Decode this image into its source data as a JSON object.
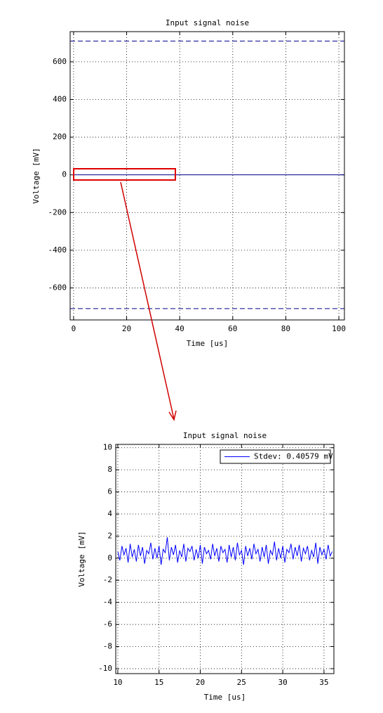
{
  "chart_data": [
    {
      "type": "line",
      "title": "Input signal noise",
      "xlabel": "Time [us]",
      "ylabel": "Voltage [mV]",
      "xlim": [
        -1.3,
        102.1
      ],
      "ylim": [
        -770,
        760
      ],
      "xticks": [
        0,
        20,
        40,
        60,
        80,
        100
      ],
      "yticks": [
        -600,
        -400,
        -200,
        0,
        200,
        400,
        600
      ],
      "grid": true,
      "series": [
        {
          "color": "#00008b",
          "x": [
            0,
            102.1
          ],
          "values": [
            0,
            0
          ]
        },
        {
          "color": "#00008b",
          "dash": true,
          "x": [
            -1.3,
            102.1
          ],
          "values": [
            710,
            710
          ]
        },
        {
          "color": "#00008b",
          "dash": true,
          "x": [
            -1.3,
            102.1
          ],
          "values": [
            -710,
            -710
          ]
        }
      ]
    },
    {
      "type": "line",
      "title": "Input signal noise",
      "xlabel": "Time [us]",
      "ylabel": "Voltage [mV]",
      "xlim": [
        9.75,
        36.2
      ],
      "ylim": [
        -10.45,
        10.3
      ],
      "xticks": [
        10,
        15,
        20,
        25,
        30,
        35
      ],
      "yticks": [
        -10,
        -8,
        -6,
        -4,
        -2,
        0,
        2,
        4,
        6,
        8,
        10
      ],
      "grid": true,
      "legend": "upper right",
      "series": [
        {
          "name": "Stdev: 0.40579 mV",
          "color": "#0000ff",
          "x": [
            10,
            10.25,
            10.5,
            10.75,
            11,
            11.25,
            11.5,
            11.75,
            12,
            12.25,
            12.5,
            12.75,
            13,
            13.25,
            13.5,
            13.75,
            14,
            14.25,
            14.5,
            14.75,
            15,
            15.25,
            15.5,
            15.75,
            16,
            16.25,
            16.5,
            16.75,
            17,
            17.25,
            17.5,
            17.75,
            18,
            18.25,
            18.5,
            18.75,
            19,
            19.25,
            19.5,
            19.75,
            20,
            20.25,
            20.5,
            20.75,
            21,
            21.25,
            21.5,
            21.75,
            22,
            22.25,
            22.5,
            22.75,
            23,
            23.25,
            23.5,
            23.75,
            24,
            24.25,
            24.5,
            24.75,
            25,
            25.25,
            25.5,
            25.75,
            26,
            26.25,
            26.5,
            26.75,
            27,
            27.25,
            27.5,
            27.75,
            28,
            28.25,
            28.5,
            28.75,
            29,
            29.25,
            29.5,
            29.75,
            30,
            30.25,
            30.5,
            30.75,
            31,
            31.25,
            31.5,
            31.75,
            32,
            32.25,
            32.5,
            32.75,
            33,
            33.25,
            33.5,
            33.75,
            34,
            34.25,
            34.5,
            34.75,
            35,
            35.25,
            35.5,
            35.75,
            36
          ],
          "values": [
            0.6,
            -0.2,
            1.1,
            0.3,
            0.9,
            -0.4,
            1.3,
            0.1,
            0.8,
            -0.3,
            1.2,
            0.2,
            1.0,
            -0.5,
            0.7,
            0.4,
            1.4,
            -0.1,
            0.9,
            0.0,
            1.1,
            -0.6,
            0.8,
            0.5,
            1.9,
            -0.2,
            1.0,
            0.3,
            1.2,
            -0.4,
            0.7,
            0.1,
            1.3,
            -0.3,
            0.9,
            0.6,
            1.1,
            -0.2,
            0.8,
            0.0,
            1.2,
            -0.5,
            1.0,
            0.4,
            0.7,
            -0.1,
            1.3,
            0.2,
            0.9,
            -0.3,
            1.1,
            0.5,
            0.8,
            -0.4,
            1.2,
            0.1,
            1.0,
            -0.2,
            1.4,
            0.3,
            0.7,
            -0.6,
            1.1,
            0.2,
            0.9,
            -0.1,
            1.3,
            0.4,
            0.8,
            -0.3,
            1.0,
            0.1,
            1.2,
            -0.5,
            0.7,
            0.3,
            1.5,
            -0.2,
            0.9,
            0.0,
            1.1,
            -0.4,
            0.8,
            0.5,
            1.3,
            -0.1,
            1.0,
            0.2,
            1.2,
            -0.3,
            0.9,
            0.4,
            1.1,
            -0.2,
            0.7,
            0.1,
            1.4,
            -0.5,
            1.0,
            0.3,
            0.8,
            -0.1,
            1.2,
            0.2,
            0.6
          ]
        }
      ]
    }
  ]
}
